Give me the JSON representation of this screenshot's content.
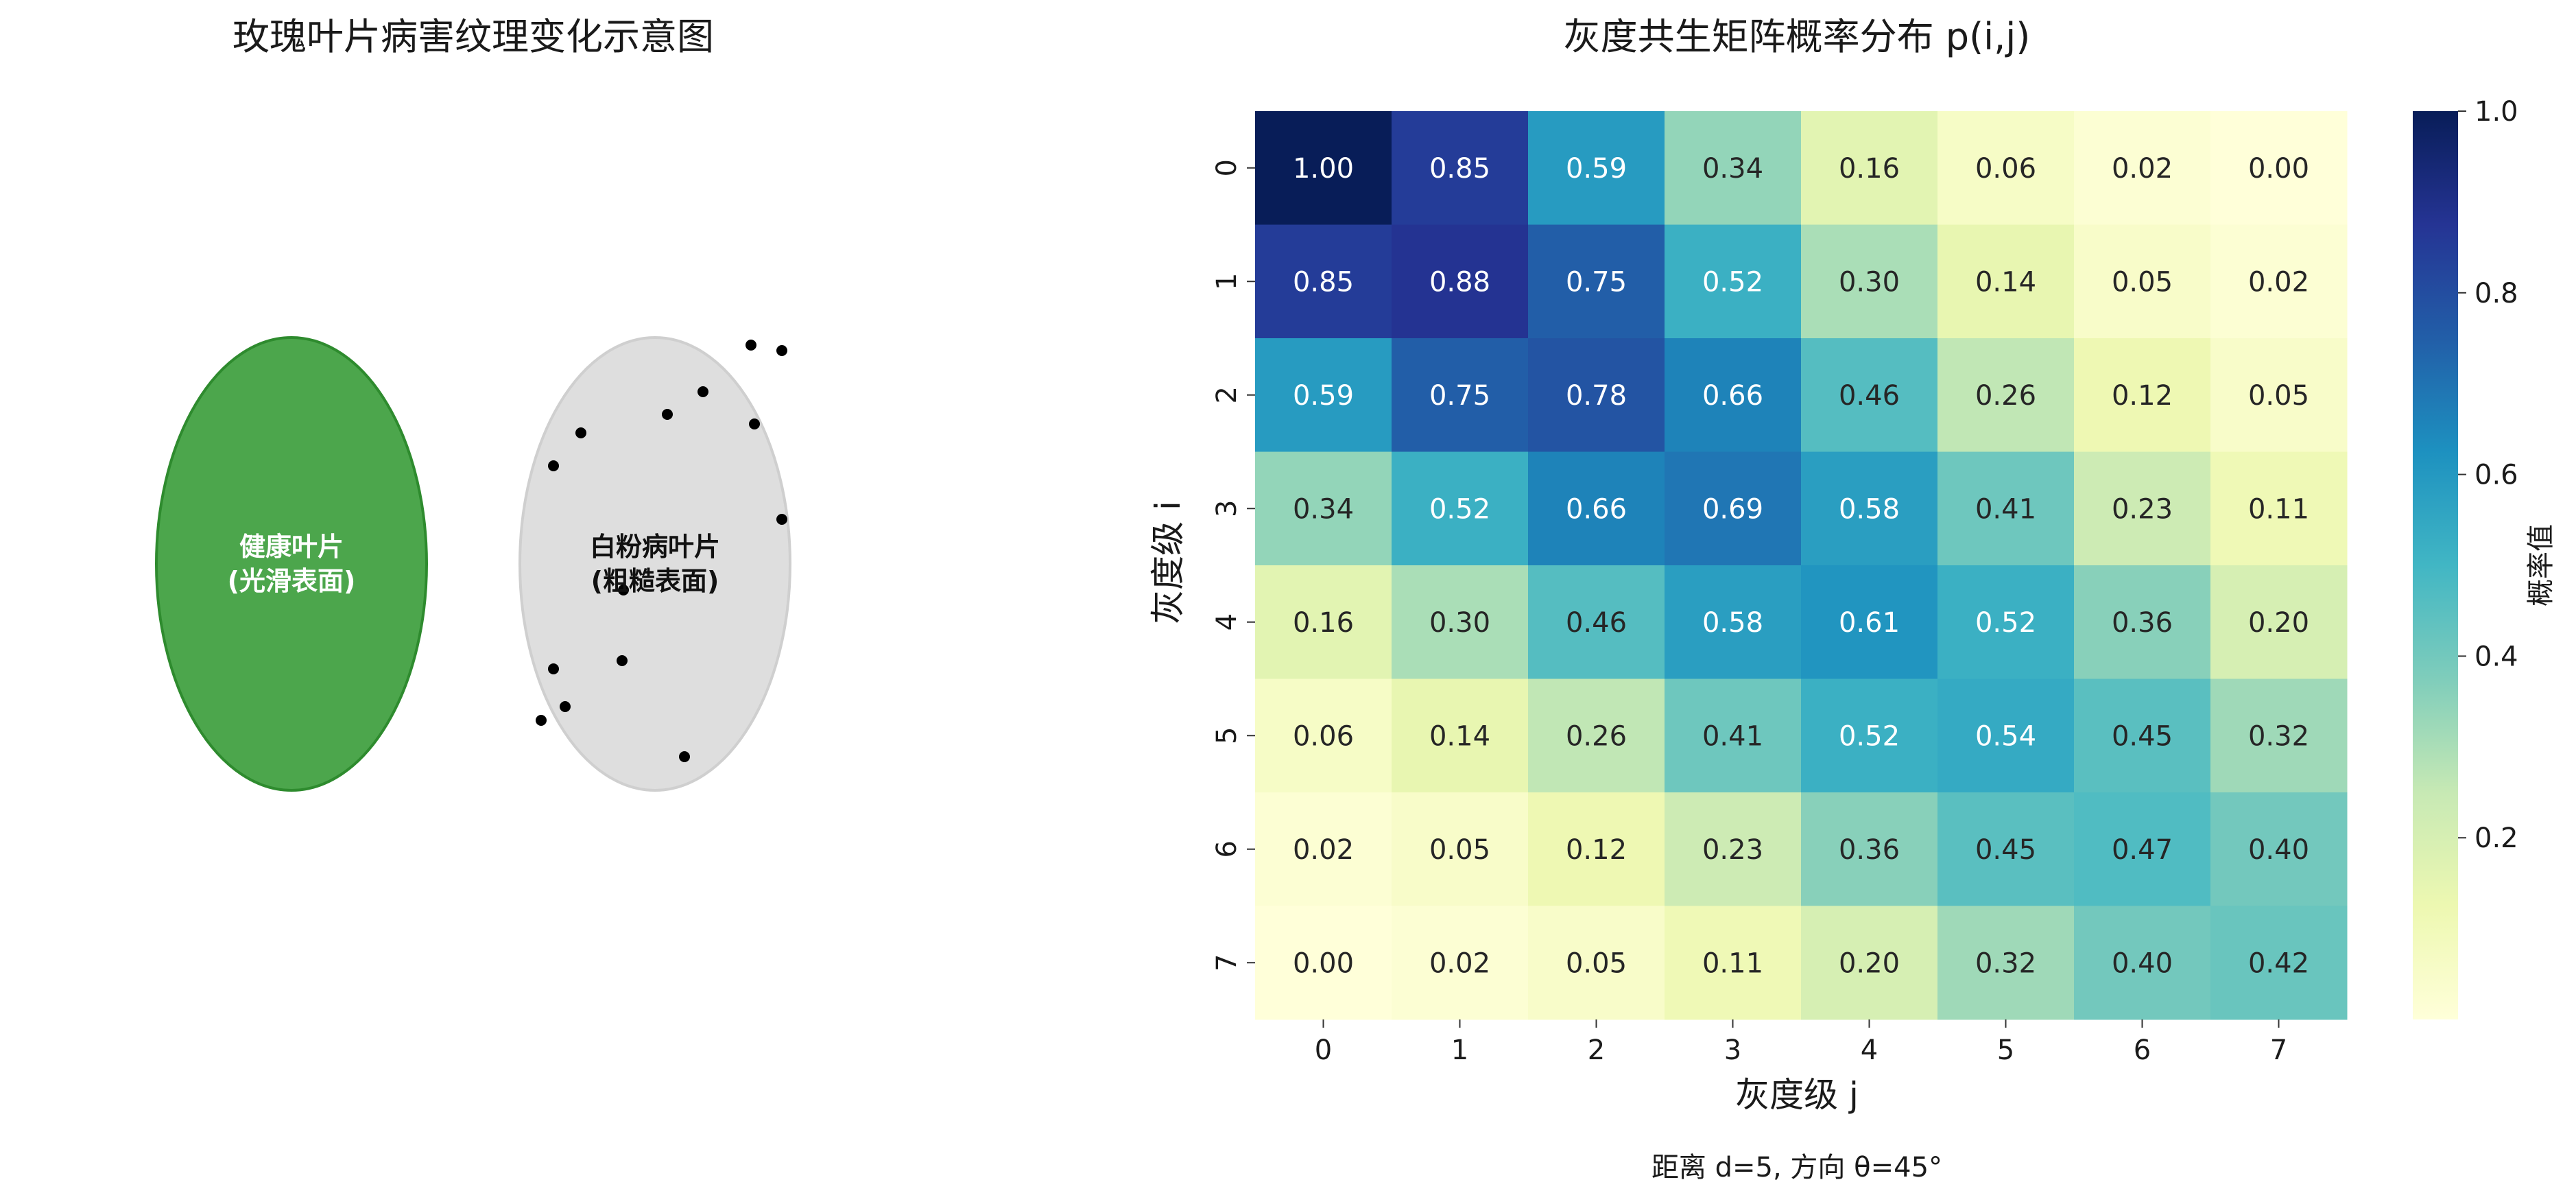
{
  "left_panel": {
    "title": "玫瑰叶片病害纹理变化示意图",
    "healthy_label_line1": "健康叶片",
    "healthy_label_line2": "(光滑表面)",
    "diseased_label_line1": "白粉病叶片",
    "diseased_label_line2": "(粗糙表面)",
    "colors": {
      "healthy_fill": "#4ca64c",
      "healthy_edge": "#2e8b2e",
      "diseased_fill": "#dedede",
      "diseased_edge": "#cfcfcf",
      "dots": "#000000"
    }
  },
  "chart_data": {
    "type": "heatmap",
    "title": "灰度共生矩阵概率分布 p(i,j)",
    "xlabel": "灰度级 j",
    "ylabel": "灰度级 i",
    "x_ticks": [
      "0",
      "1",
      "2",
      "3",
      "4",
      "5",
      "6",
      "7"
    ],
    "y_ticks": [
      "0",
      "1",
      "2",
      "3",
      "4",
      "5",
      "6",
      "7"
    ],
    "values": [
      [
        1.0,
        0.85,
        0.59,
        0.34,
        0.16,
        0.06,
        0.02,
        0.0
      ],
      [
        0.85,
        0.88,
        0.75,
        0.52,
        0.3,
        0.14,
        0.05,
        0.02
      ],
      [
        0.59,
        0.75,
        0.78,
        0.66,
        0.46,
        0.26,
        0.12,
        0.05
      ],
      [
        0.34,
        0.52,
        0.66,
        0.69,
        0.58,
        0.41,
        0.23,
        0.11
      ],
      [
        0.16,
        0.3,
        0.46,
        0.58,
        0.61,
        0.52,
        0.36,
        0.2
      ],
      [
        0.06,
        0.14,
        0.26,
        0.41,
        0.52,
        0.54,
        0.45,
        0.32
      ],
      [
        0.02,
        0.05,
        0.12,
        0.23,
        0.36,
        0.45,
        0.47,
        0.4
      ],
      [
        0.0,
        0.02,
        0.05,
        0.11,
        0.2,
        0.32,
        0.4,
        0.42
      ]
    ],
    "colormap": "YlGnBu",
    "colorbar": {
      "label": "概率值",
      "ticks": [
        "0.2",
        "0.4",
        "0.6",
        "0.8",
        "1.0"
      ],
      "tick_values": [
        0.2,
        0.4,
        0.6,
        0.8,
        1.0
      ],
      "range": [
        0.0,
        1.0
      ]
    },
    "caption": "距离 d=5, 方向 θ=45°"
  }
}
